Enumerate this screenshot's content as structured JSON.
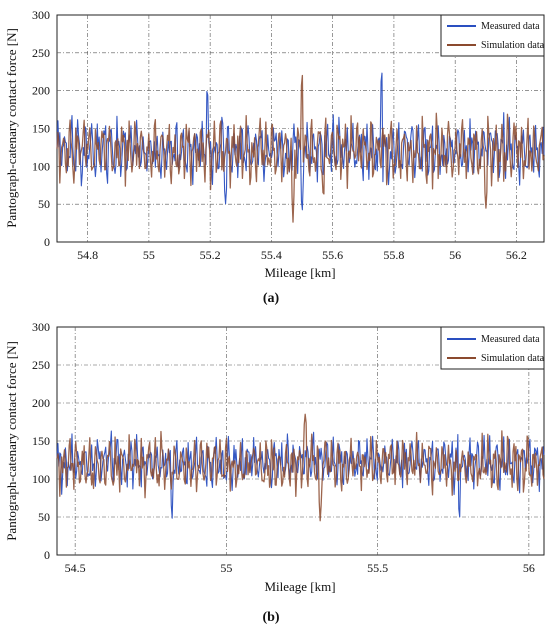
{
  "chart_data": [
    {
      "type": "line",
      "caption": "(a)",
      "xlabel": "Mileage [km]",
      "ylabel": "Pantograph-catenary contact force [N]",
      "xlim": [
        54.7,
        56.29
      ],
      "ylim": [
        0,
        300
      ],
      "xticks": [
        54.8,
        55,
        55.2,
        55.4,
        55.6,
        55.8,
        56,
        56.2
      ],
      "xtick_labels": [
        "54.8",
        "55",
        "55.2",
        "55.4",
        "55.6",
        "55.8",
        "56",
        "56.2"
      ],
      "yticks": [
        0,
        50,
        100,
        150,
        200,
        250,
        300
      ],
      "grid": true,
      "legend_position": "top-right",
      "series": [
        {
          "name": "Measured data",
          "color": "#2a4fc0",
          "mean": 122,
          "amplitude": 38,
          "peaks": [
            [
              55.19,
              207
            ],
            [
              55.76,
              239
            ],
            [
              55.5,
              30
            ],
            [
              55.25,
              48
            ]
          ]
        },
        {
          "name": "Simulation data",
          "color": "#8b4a2e",
          "mean": 120,
          "amplitude": 40,
          "peaks": [
            [
              55.5,
              236
            ],
            [
              55.47,
              20
            ],
            [
              55.57,
              55
            ],
            [
              56.1,
              43
            ]
          ]
        }
      ]
    },
    {
      "type": "line",
      "caption": "(b)",
      "xlabel": "Mileage [km]",
      "ylabel": "Pantograph-catenary contact force [N]",
      "xlim": [
        54.44,
        56.05
      ],
      "ylim": [
        0,
        300
      ],
      "xticks": [
        54.5,
        55,
        55.5,
        56
      ],
      "xtick_labels": [
        "54.5",
        "55",
        "55.5",
        "56"
      ],
      "yticks": [
        0,
        50,
        100,
        150,
        200,
        250,
        300
      ],
      "grid": true,
      "legend_position": "top-right",
      "series": [
        {
          "name": "Measured data",
          "color": "#2a4fc0",
          "mean": 122,
          "amplitude": 32,
          "peaks": [
            [
              54.82,
              43
            ],
            [
              55.77,
              41
            ]
          ]
        },
        {
          "name": "Simulation data",
          "color": "#8b4a2e",
          "mean": 120,
          "amplitude": 34,
          "peaks": [
            [
              55.26,
              187
            ],
            [
              55.31,
              45
            ]
          ]
        }
      ]
    }
  ]
}
